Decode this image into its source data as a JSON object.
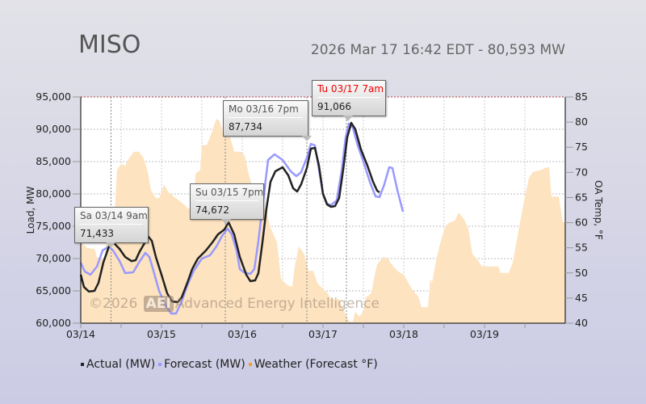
{
  "header": {
    "title": "MISO",
    "subtitle": "2026 Mar 17 16:42 EDT - 80,593 MW"
  },
  "watermark": {
    "copy": "©2026",
    "logo": "AEI",
    "text": "Advanced Energy Intelligence"
  },
  "colors": {
    "actual": "#222222",
    "forecast": "#9999ff",
    "weather": "#fde3c0",
    "weather_legend": "#f0a030"
  },
  "tooltips": [
    {
      "title": "Sa 03/14 9am",
      "value": "71,433"
    },
    {
      "title": "Su 03/15 7pm",
      "value": "74,672"
    },
    {
      "title": "Mo 03/16 7pm",
      "value": "87,734"
    },
    {
      "title": "Tu 03/17 7am",
      "value": "91,066"
    }
  ],
  "legend": [
    "Actual (MW)",
    "Forecast (MW)",
    "Weather (Forecast °F)"
  ],
  "chart_data": {
    "type": "line",
    "title": "MISO",
    "xlabel": "",
    "ylabel": "Load, MW",
    "y2label": "OA Temp, °F",
    "x_unit": "days since 03/14 00:00",
    "xlim": [
      0,
      6
    ],
    "ylim": [
      60000,
      95000
    ],
    "y2lim": [
      40,
      85
    ],
    "x_ticks": [
      {
        "v": 0,
        "label": "03/14"
      },
      {
        "v": 1,
        "label": "03/15"
      },
      {
        "v": 2,
        "label": "03/16"
      },
      {
        "v": 3,
        "label": "03/17"
      },
      {
        "v": 4,
        "label": "03/18"
      },
      {
        "v": 5,
        "label": "03/19"
      }
    ],
    "y_ticks": [
      "60,000",
      "65,000",
      "70,000",
      "75,000",
      "80,000",
      "85,000",
      "90,000",
      "95,000"
    ],
    "y2_ticks": [
      "40",
      "45",
      "50",
      "55",
      "60",
      "65",
      "70",
      "75",
      "80",
      "85"
    ],
    "grid": true,
    "legend_position": "bottom",
    "series": [
      {
        "name": "Weather (Forecast °F)",
        "axis": "right",
        "type": "area",
        "points": [
          [
            0,
            56.1
          ],
          [
            0.08,
            55
          ],
          [
            0.17,
            54.8
          ],
          [
            0.22,
            52.1
          ],
          [
            0.24,
            53.3
          ],
          [
            0.3,
            52.5
          ],
          [
            0.32,
            58.5
          ],
          [
            0.38,
            59
          ],
          [
            0.42,
            62
          ],
          [
            0.45,
            70.5
          ],
          [
            0.5,
            71.7
          ],
          [
            0.55,
            71.3
          ],
          [
            0.6,
            72.9
          ],
          [
            0.66,
            74.1
          ],
          [
            0.72,
            74.1
          ],
          [
            0.78,
            72.8
          ],
          [
            0.83,
            70.1
          ],
          [
            0.87,
            66.4
          ],
          [
            0.93,
            64.9
          ],
          [
            0.97,
            64.9
          ],
          [
            1.03,
            67.6
          ],
          [
            1.08,
            66.2
          ],
          [
            1.15,
            65.2
          ],
          [
            1.22,
            64.4
          ],
          [
            1.28,
            63.6
          ],
          [
            1.33,
            62.8
          ],
          [
            1.4,
            62.8
          ],
          [
            1.42,
            69.7
          ],
          [
            1.48,
            70.5
          ],
          [
            1.5,
            75.4
          ],
          [
            1.56,
            75.4
          ],
          [
            1.62,
            77.8
          ],
          [
            1.68,
            80.7
          ],
          [
            1.72,
            80.2
          ],
          [
            1.78,
            77
          ],
          [
            1.85,
            77
          ],
          [
            1.9,
            74.1
          ],
          [
            1.98,
            74.1
          ],
          [
            2.03,
            73.3
          ],
          [
            2.08,
            69.7
          ],
          [
            2.13,
            66.8
          ],
          [
            2.18,
            65.2
          ],
          [
            2.25,
            63.3
          ],
          [
            2.3,
            62.2
          ],
          [
            2.35,
            59
          ],
          [
            2.43,
            56.1
          ],
          [
            2.48,
            48.8
          ],
          [
            2.55,
            47.7
          ],
          [
            2.62,
            47.2
          ],
          [
            2.65,
            51.3
          ],
          [
            2.7,
            55.3
          ],
          [
            2.77,
            53.7
          ],
          [
            2.82,
            50.4
          ],
          [
            2.88,
            50.4
          ],
          [
            2.93,
            48
          ],
          [
            3,
            46.8
          ],
          [
            3.05,
            46.1
          ],
          [
            3.1,
            44.8
          ],
          [
            3.2,
            44.8
          ],
          [
            3.28,
            41.6
          ],
          [
            3.33,
            40.3
          ],
          [
            3.37,
            40.3
          ],
          [
            3.4,
            42.3
          ],
          [
            3.45,
            41.3
          ],
          [
            3.5,
            42.4
          ],
          [
            3.53,
            45.1
          ],
          [
            3.6,
            46
          ],
          [
            3.63,
            48.8
          ],
          [
            3.67,
            51.7
          ],
          [
            3.75,
            53.2
          ],
          [
            3.8,
            52.9
          ],
          [
            3.87,
            51.3
          ],
          [
            3.93,
            50.3
          ],
          [
            4,
            49.6
          ],
          [
            4.03,
            48.8
          ],
          [
            4.1,
            46.8
          ],
          [
            4.18,
            45.3
          ],
          [
            4.22,
            43.2
          ],
          [
            4.3,
            43.2
          ],
          [
            4.33,
            48.8
          ],
          [
            4.35,
            48
          ],
          [
            4.4,
            52.5
          ],
          [
            4.45,
            55.8
          ],
          [
            4.5,
            58.6
          ],
          [
            4.55,
            59.9
          ],
          [
            4.63,
            60.4
          ],
          [
            4.68,
            62
          ],
          [
            4.75,
            60.6
          ],
          [
            4.8,
            58.8
          ],
          [
            4.85,
            53.7
          ],
          [
            4.9,
            52.9
          ],
          [
            4.97,
            51.3
          ],
          [
            5.17,
            51.3
          ],
          [
            5.2,
            50
          ],
          [
            5.3,
            50
          ],
          [
            5.35,
            52.1
          ],
          [
            5.4,
            56.6
          ],
          [
            5.45,
            60.9
          ],
          [
            5.5,
            65.2
          ],
          [
            5.55,
            68.9
          ],
          [
            5.6,
            70.1
          ],
          [
            5.7,
            70.5
          ],
          [
            5.77,
            71
          ],
          [
            5.8,
            71
          ],
          [
            5.83,
            65.2
          ],
          [
            5.92,
            65.2
          ],
          [
            5.97,
            60.1
          ],
          [
            6,
            60.1
          ]
        ]
      },
      {
        "name": "Forecast (MW)",
        "axis": "left",
        "type": "line",
        "points": [
          [
            0,
            69375
          ],
          [
            0.05,
            68000
          ],
          [
            0.12,
            67500
          ],
          [
            0.2,
            68750
          ],
          [
            0.27,
            71250
          ],
          [
            0.35,
            71875
          ],
          [
            0.4,
            71250
          ],
          [
            0.48,
            69625
          ],
          [
            0.55,
            67750
          ],
          [
            0.65,
            67875
          ],
          [
            0.72,
            69375
          ],
          [
            0.8,
            70875
          ],
          [
            0.85,
            70250
          ],
          [
            0.9,
            68125
          ],
          [
            0.97,
            65000
          ],
          [
            1.05,
            62750
          ],
          [
            1.12,
            61500
          ],
          [
            1.18,
            61500
          ],
          [
            1.25,
            63375
          ],
          [
            1.32,
            65875
          ],
          [
            1.4,
            68125
          ],
          [
            1.5,
            70000
          ],
          [
            1.6,
            70500
          ],
          [
            1.68,
            71875
          ],
          [
            1.75,
            73500
          ],
          [
            1.82,
            74625
          ],
          [
            1.87,
            73750
          ],
          [
            1.93,
            71250
          ],
          [
            1.97,
            68375
          ],
          [
            2.02,
            67875
          ],
          [
            2.1,
            67625
          ],
          [
            2.15,
            68375
          ],
          [
            2.2,
            72750
          ],
          [
            2.25,
            78125
          ],
          [
            2.32,
            85250
          ],
          [
            2.4,
            86125
          ],
          [
            2.5,
            85250
          ],
          [
            2.6,
            83500
          ],
          [
            2.67,
            82750
          ],
          [
            2.73,
            83375
          ],
          [
            2.8,
            85625
          ],
          [
            2.85,
            87750
          ],
          [
            2.9,
            87500
          ],
          [
            2.95,
            83750
          ],
          [
            3,
            80000
          ],
          [
            3.05,
            78500
          ],
          [
            3.1,
            78250
          ],
          [
            3.17,
            79000
          ],
          [
            3.23,
            83500
          ],
          [
            3.28,
            88750
          ],
          [
            3.32,
            90875
          ],
          [
            3.37,
            90250
          ],
          [
            3.43,
            87500
          ],
          [
            3.5,
            85000
          ],
          [
            3.58,
            81875
          ],
          [
            3.65,
            79625
          ],
          [
            3.7,
            79500
          ],
          [
            3.76,
            81500
          ],
          [
            3.82,
            84125
          ],
          [
            3.86,
            84000
          ],
          [
            3.92,
            80625
          ],
          [
            3.99,
            77250
          ]
        ]
      },
      {
        "name": "Actual (MW)",
        "axis": "left",
        "type": "line",
        "points": [
          [
            0,
            67500
          ],
          [
            0.04,
            65600
          ],
          [
            0.1,
            64900
          ],
          [
            0.17,
            65000
          ],
          [
            0.22,
            66250
          ],
          [
            0.28,
            69400
          ],
          [
            0.35,
            71900
          ],
          [
            0.41,
            72400
          ],
          [
            0.48,
            71500
          ],
          [
            0.55,
            70250
          ],
          [
            0.63,
            69600
          ],
          [
            0.68,
            69750
          ],
          [
            0.73,
            71100
          ],
          [
            0.8,
            72600
          ],
          [
            0.83,
            73500
          ],
          [
            0.88,
            72750
          ],
          [
            0.93,
            70250
          ],
          [
            1,
            67500
          ],
          [
            1.07,
            64625
          ],
          [
            1.13,
            63375
          ],
          [
            1.2,
            63250
          ],
          [
            1.25,
            64000
          ],
          [
            1.32,
            66250
          ],
          [
            1.38,
            68375
          ],
          [
            1.45,
            70000
          ],
          [
            1.55,
            71250
          ],
          [
            1.63,
            72500
          ],
          [
            1.7,
            73750
          ],
          [
            1.78,
            74500
          ],
          [
            1.83,
            75625
          ],
          [
            1.9,
            73750
          ],
          [
            1.97,
            70250
          ],
          [
            2.05,
            67500
          ],
          [
            2.1,
            66500
          ],
          [
            2.16,
            66625
          ],
          [
            2.2,
            67750
          ],
          [
            2.25,
            72500
          ],
          [
            2.3,
            77750
          ],
          [
            2.35,
            81875
          ],
          [
            2.41,
            83500
          ],
          [
            2.5,
            84125
          ],
          [
            2.57,
            82875
          ],
          [
            2.63,
            80875
          ],
          [
            2.68,
            80375
          ],
          [
            2.73,
            81500
          ],
          [
            2.8,
            84000
          ],
          [
            2.85,
            87000
          ],
          [
            2.9,
            87125
          ],
          [
            2.95,
            84375
          ],
          [
            3,
            80000
          ],
          [
            3.05,
            78375
          ],
          [
            3.1,
            78000
          ],
          [
            3.15,
            78125
          ],
          [
            3.2,
            79375
          ],
          [
            3.25,
            83750
          ],
          [
            3.3,
            88750
          ],
          [
            3.35,
            91000
          ],
          [
            3.4,
            90000
          ],
          [
            3.47,
            86875
          ],
          [
            3.55,
            84375
          ],
          [
            3.62,
            81875
          ],
          [
            3.67,
            80500
          ],
          [
            3.7,
            80250
          ]
        ]
      }
    ],
    "markers": [
      0.375,
      1.79,
      2.8,
      3.29
    ]
  }
}
